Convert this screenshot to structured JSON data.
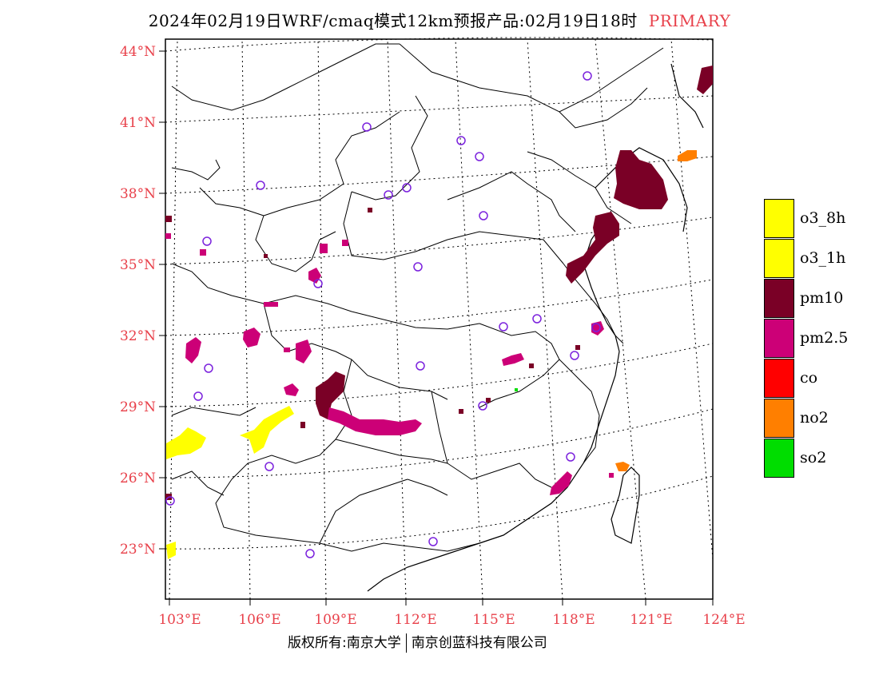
{
  "title": {
    "text": "2024年02月19日WRF/cmaq模式12km预报产品:02月19日18时",
    "tag": "PRIMARY",
    "tag_color": "#e8404a"
  },
  "axes": {
    "lat_labels": [
      "44°N",
      "41°N",
      "38°N",
      "35°N",
      "32°N",
      "29°N",
      "26°N",
      "23°N"
    ],
    "lon_labels": [
      "103°E",
      "106°E",
      "109°E",
      "112°E",
      "115°E",
      "118°E",
      "121°E",
      "124°E"
    ],
    "label_color": "#e8404a"
  },
  "legend": [
    {
      "label": "o3_8h",
      "color": "#ffff00"
    },
    {
      "label": "o3_1h",
      "color": "#ffff00"
    },
    {
      "label": "pm10",
      "color": "#7a0026"
    },
    {
      "label": "pm2.5",
      "color": "#cc0077"
    },
    {
      "label": "co",
      "color": "#ff0000"
    },
    {
      "label": "no2",
      "color": "#ff7f00"
    },
    {
      "label": "so2",
      "color": "#00dd00"
    }
  ],
  "footer": {
    "left": "版权所有:南京大学",
    "right": "南京创蓝科技有限公司"
  },
  "station_marker_color": "#7b22dd"
}
